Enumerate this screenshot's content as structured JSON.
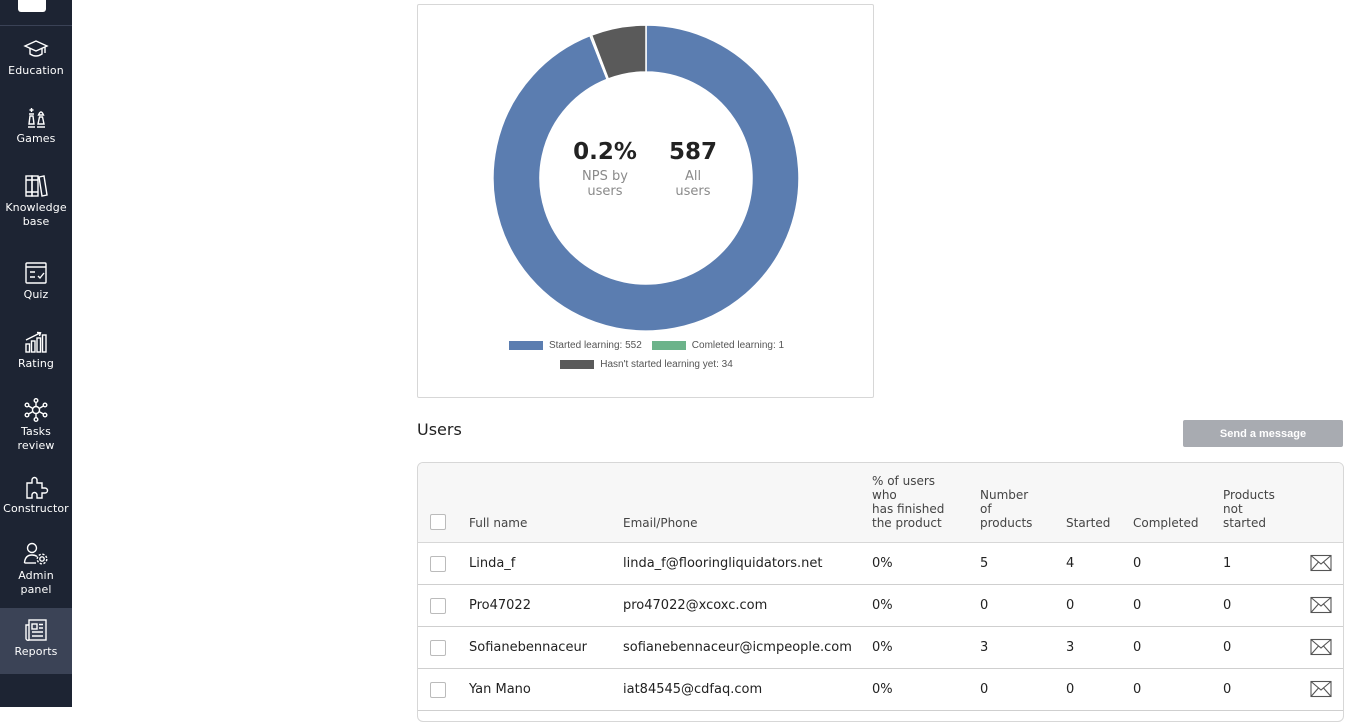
{
  "sidebar": {
    "items": [
      {
        "label": "Education",
        "icon": "graduation-cap-icon"
      },
      {
        "label": "Games",
        "icon": "chess-icon"
      },
      {
        "label": "Knowledge\nbase",
        "icon": "books-icon"
      },
      {
        "label": "Quiz",
        "icon": "quiz-icon"
      },
      {
        "label": "Rating",
        "icon": "rating-bars-icon"
      },
      {
        "label": "Tasks\nreview",
        "icon": "network-icon"
      },
      {
        "label": "Constructor",
        "icon": "puzzle-icon"
      },
      {
        "label": "Admin\npanel",
        "icon": "admin-user-icon"
      },
      {
        "label": "Reports",
        "icon": "reports-icon"
      }
    ],
    "active": "Reports"
  },
  "chart": {
    "nps_value": "0.2%",
    "nps_label": "NPS by\nusers",
    "all_value": "587",
    "all_label": "All\nusers",
    "legend": [
      {
        "label": "Started learning: 552",
        "color": "#5b7db0"
      },
      {
        "label": "Comleted learning: 1",
        "color": "#6cb38a"
      },
      {
        "label": "Hasn't started learning yet: 34",
        "color": "#5a5a5a"
      }
    ]
  },
  "chart_data": {
    "type": "pie",
    "variant": "donut",
    "categories": [
      "Started learning",
      "Comleted learning",
      "Hasn't started learning yet"
    ],
    "values": [
      552,
      1,
      34
    ],
    "colors": [
      "#5b7db0",
      "#6cb38a",
      "#5a5a5a"
    ],
    "legend": "bottom"
  },
  "users": {
    "title": "Users",
    "send_message_label": "Send a message",
    "columns": [
      "Full name",
      "Email/Phone",
      "% of users\nwho\nhas finished\nthe product",
      "Number\nof\nproducts",
      "Started",
      "Completed",
      "Products\nnot\nstarted"
    ],
    "rows": [
      {
        "name": "Linda_f",
        "email": "linda_f@flooringliquidators.net",
        "pct": "0%",
        "products": "5",
        "started": "4",
        "completed": "0",
        "not_started": "1"
      },
      {
        "name": "Pro47022",
        "email": "pro47022@xcoxc.com",
        "pct": "0%",
        "products": "0",
        "started": "0",
        "completed": "0",
        "not_started": "0"
      },
      {
        "name": "Sofianebennaceur",
        "email": "sofianebennaceur@icmpeople.com",
        "pct": "0%",
        "products": "3",
        "started": "3",
        "completed": "0",
        "not_started": "0"
      },
      {
        "name": "Yan Mano",
        "email": "iat84545@cdfaq.com",
        "pct": "0%",
        "products": "0",
        "started": "0",
        "completed": "0",
        "not_started": "0"
      }
    ]
  }
}
